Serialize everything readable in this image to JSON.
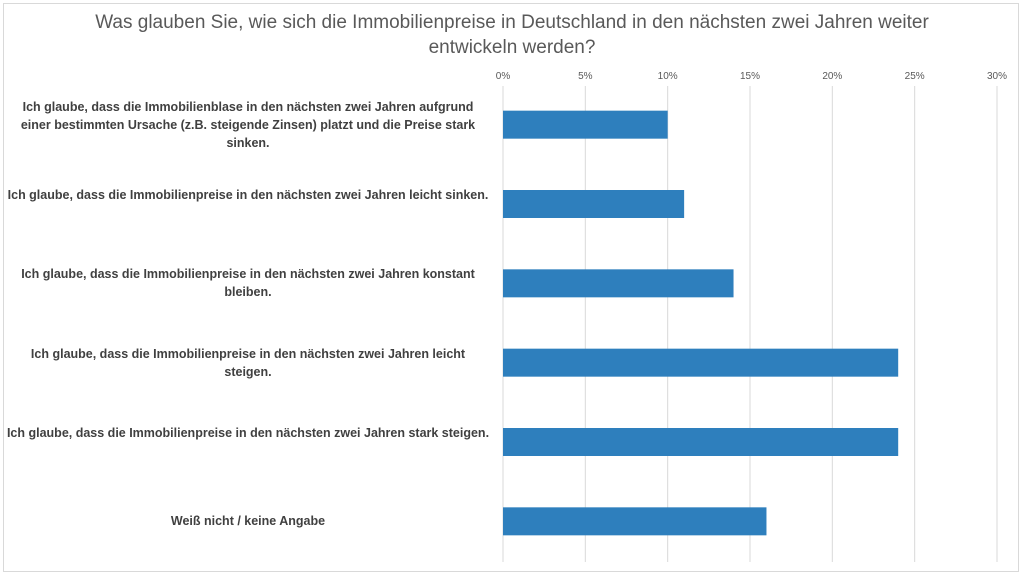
{
  "chart_data": {
    "type": "bar",
    "orientation": "horizontal",
    "title": "Was glauben Sie, wie sich die Immobilienpreise in Deutschland in den nächsten zwei Jahren weiter entwickeln werden?",
    "categories": [
      "Ich glaube, dass die Immobilienblase in den nächsten zwei Jahren aufgrund einer bestimmten Ursache (z.B. steigende Zinsen) platzt und die Preise stark sinken.",
      "Ich glaube, dass die Immobilienpreise in den nächsten zwei Jahren leicht sinken.",
      "Ich glaube, dass die Immobilienpreise in den nächsten zwei Jahren konstant bleiben.",
      "Ich glaube, dass die Immobilienpreise in den nächsten zwei Jahren leicht steigen.",
      "Ich glaube, dass die Immobilienpreise in den nächsten zwei Jahren stark steigen.",
      "Weiß nicht / keine Angabe"
    ],
    "values": [
      10,
      11,
      14,
      24,
      24,
      16
    ],
    "xlim": [
      0,
      30
    ],
    "ticks": [
      "0%",
      "5%",
      "10%",
      "15%",
      "20%",
      "25%",
      "30%"
    ],
    "tick_values": [
      0,
      5,
      10,
      15,
      20,
      25,
      30
    ],
    "axis_position": "top",
    "grid": true,
    "legend": "none",
    "bar_color": "#2e7fbd",
    "grid_color": "#d9d9d9"
  }
}
